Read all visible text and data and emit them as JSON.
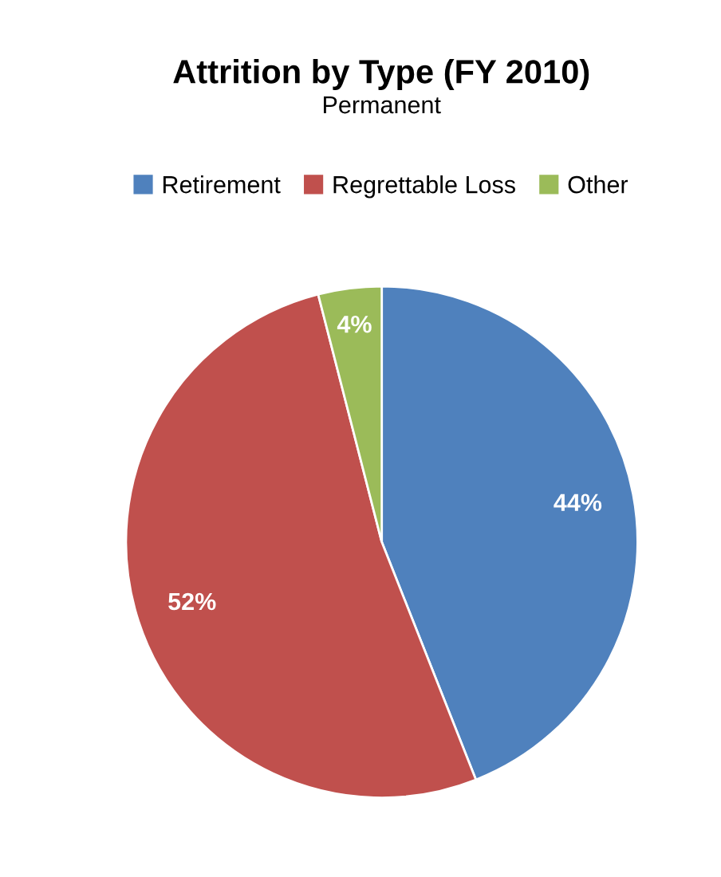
{
  "chart_data": {
    "type": "pie",
    "title": "Attrition by Type (FY 2010)",
    "subtitle": "Permanent",
    "categories": [
      "Retirement",
      "Regrettable Loss",
      "Other"
    ],
    "values": [
      44,
      52,
      4
    ],
    "colors": [
      "#4f81bd",
      "#c0504d",
      "#9bbb59"
    ],
    "value_labels": [
      "44%",
      "52%",
      "4%"
    ],
    "legend": "top"
  }
}
